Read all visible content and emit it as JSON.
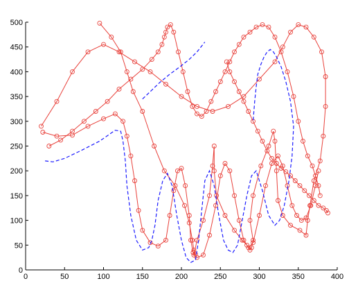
{
  "chart_data": {
    "type": "line",
    "title": "",
    "xlabel": "",
    "ylabel": "",
    "xlim": [
      0,
      400
    ],
    "ylim": [
      0,
      500
    ],
    "xticks": [
      0,
      50,
      100,
      150,
      200,
      250,
      300,
      350,
      400
    ],
    "yticks": [
      0,
      50,
      100,
      150,
      200,
      250,
      300,
      350,
      400,
      450,
      500
    ],
    "grid": false,
    "legend": "none",
    "colors": {
      "trajectories": "#e8403a",
      "reference": "#1a1aff",
      "axes": "#000000"
    },
    "series": [
      {
        "style": "red-circle-markers",
        "x": [
          95,
          110,
          122,
          130,
          138,
          150,
          165,
          178,
          192,
          204,
          210,
          214,
          216,
          218,
          216,
          220,
          228,
          236,
          240,
          242,
          242,
          245,
          256,
          268,
          278,
          284,
          288,
          290,
          292,
          288,
          292,
          302,
          312,
          318,
          320,
          322,
          324,
          330,
          340,
          352,
          360,
          362,
          365,
          370,
          378,
          382,
          385,
          385,
          380,
          370,
          360,
          350,
          340,
          330,
          320,
          300,
          280,
          260,
          240,
          220,
          200,
          180,
          160,
          140,
          120,
          100,
          80,
          60,
          40,
          20
        ],
        "y": [
          498,
          470,
          440,
          400,
          360,
          320,
          250,
          200,
          170,
          130,
          95,
          60,
          40,
          32,
          30,
          60,
          100,
          150,
          210,
          250,
          200,
          150,
          110,
          80,
          60,
          50,
          40,
          45,
          60,
          100,
          150,
          210,
          250,
          280,
          260,
          200,
          140,
          110,
          90,
          80,
          70,
          100,
          130,
          180,
          220,
          270,
          330,
          390,
          440,
          470,
          490,
          495,
          480,
          450,
          420,
          385,
          350,
          330,
          320,
          330,
          350,
          375,
          400,
          420,
          440,
          455,
          440,
          400,
          340,
          290
        ]
      },
      {
        "style": "red-circle-markers",
        "x": [
          22,
          40,
          60,
          80,
          100,
          115,
          125,
          130,
          135,
          140,
          145,
          150,
          160,
          170,
          180,
          185,
          190,
          195,
          200,
          205,
          210,
          212,
          215,
          220,
          228,
          236,
          244,
          250,
          256,
          262,
          268,
          274,
          280,
          286,
          292,
          300,
          308,
          316,
          324,
          330,
          336,
          342,
          348,
          354,
          360,
          366,
          372,
          376
        ],
        "y": [
          278,
          270,
          272,
          290,
          305,
          315,
          300,
          270,
          230,
          180,
          120,
          80,
          55,
          48,
          60,
          110,
          160,
          200,
          205,
          170,
          110,
          60,
          35,
          25,
          30,
          70,
          130,
          190,
          215,
          200,
          150,
          100,
          60,
          45,
          55,
          110,
          170,
          215,
          230,
          210,
          170,
          130,
          110,
          100,
          105,
          130,
          170,
          200
        ]
      },
      {
        "style": "red-circle-markers",
        "x": [
          30,
          45,
          60,
          75,
          90,
          105,
          120,
          135,
          150,
          162,
          170,
          175,
          178,
          180,
          182,
          186,
          190,
          196,
          202,
          208,
          214,
          220,
          226,
          232,
          238,
          244,
          250,
          256,
          262,
          268,
          274,
          280,
          288,
          296,
          304,
          312,
          320,
          328,
          336,
          344,
          350,
          356,
          362,
          368,
          372,
          376,
          378
        ],
        "y": [
          250,
          262,
          280,
          300,
          320,
          340,
          365,
          385,
          405,
          425,
          440,
          455,
          470,
          480,
          490,
          495,
          480,
          440,
          400,
          360,
          330,
          315,
          310,
          320,
          340,
          360,
          380,
          400,
          420,
          440,
          455,
          470,
          480,
          490,
          495,
          490,
          470,
          440,
          400,
          350,
          300,
          260,
          230,
          210,
          190,
          170,
          150
        ]
      },
      {
        "style": "red-circle-markers",
        "x": [
          258,
          262,
          268,
          274,
          280,
          286,
          292,
          298,
          304,
          310,
          316,
          322,
          328,
          334,
          340,
          346,
          352,
          358,
          364,
          370,
          376,
          382,
          386,
          388
        ],
        "y": [
          420,
          400,
          380,
          360,
          340,
          320,
          300,
          280,
          260,
          240,
          225,
          215,
          205,
          198,
          190,
          180,
          170,
          160,
          150,
          140,
          130,
          125,
          120,
          115
        ]
      },
      {
        "style": "blue-dashed",
        "x": [
          25,
          35,
          50,
          70,
          95,
          115,
          122,
          125,
          128,
          130,
          135,
          142,
          150,
          158,
          162,
          166,
          170,
          176,
          182,
          188,
          194,
          200,
          206,
          212,
          218,
          222,
          226,
          230,
          236,
          242,
          248,
          254,
          260,
          266,
          272,
          278,
          284,
          290,
          296,
          304,
          312,
          320,
          326,
          332,
          338,
          342,
          344,
          340,
          334,
          328,
          322,
          318,
          314,
          310,
          306,
          302,
          298,
          296,
          294,
          292
        ],
        "y": [
          220,
          218,
          225,
          240,
          260,
          282,
          280,
          260,
          220,
          170,
          110,
          60,
          40,
          45,
          60,
          90,
          140,
          180,
          195,
          170,
          110,
          60,
          25,
          15,
          20,
          60,
          120,
          180,
          200,
          170,
          110,
          60,
          40,
          35,
          50,
          100,
          150,
          190,
          200,
          160,
          110,
          90,
          100,
          130,
          180,
          230,
          290,
          340,
          380,
          410,
          430,
          440,
          445,
          440,
          430,
          415,
          395,
          370,
          340,
          300
        ]
      },
      {
        "style": "blue-dashed",
        "x": [
          150,
          160,
          172,
          185,
          198,
          210,
          220,
          226,
          230
        ],
        "y": [
          345,
          360,
          378,
          395,
          410,
          425,
          440,
          452,
          460
        ]
      }
    ]
  }
}
